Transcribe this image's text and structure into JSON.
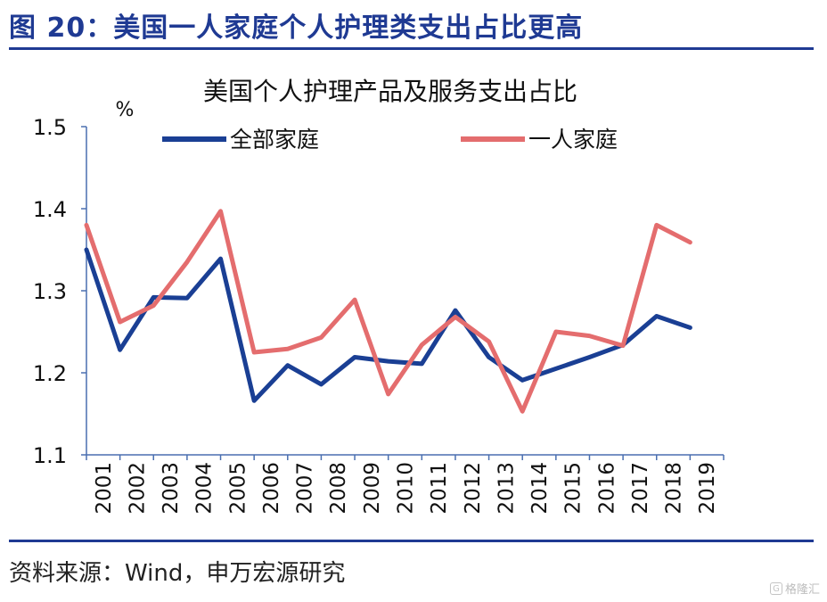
{
  "figure": {
    "title": "图 20：美国一人家庭个人护理类支出占比更高",
    "source": "资料来源：Wind，申万宏源研究",
    "watermark": "格隆汇"
  },
  "chart_data": {
    "type": "line",
    "title": "美国个人护理产品及服务支出占比",
    "ylabel": "%",
    "xlabel": "",
    "ylim": [
      1.1,
      1.5
    ],
    "yticks": [
      "1.1",
      "1.2",
      "1.3",
      "1.4",
      "1.5"
    ],
    "grid": false,
    "legend_position": "top",
    "categories": [
      "2001",
      "2002",
      "2003",
      "2004",
      "2005",
      "2006",
      "2007",
      "2008",
      "2009",
      "2010",
      "2011",
      "2012",
      "2013",
      "2014",
      "2015",
      "2016",
      "2017",
      "2018",
      "2019"
    ],
    "series": [
      {
        "name": "全部家庭",
        "color": "#1a3f94",
        "values": [
          1.35,
          1.228,
          1.292,
          1.291,
          1.339,
          1.166,
          1.209,
          1.186,
          1.219,
          1.214,
          1.211,
          1.276,
          1.219,
          1.191,
          1.205,
          1.219,
          1.234,
          1.269,
          1.255
        ]
      },
      {
        "name": "一人家庭",
        "color": "#e46d6e",
        "values": [
          1.38,
          1.262,
          1.282,
          1.335,
          1.397,
          1.225,
          1.229,
          1.243,
          1.289,
          1.174,
          1.234,
          1.268,
          1.238,
          1.153,
          1.25,
          1.245,
          1.233,
          1.38,
          1.359
        ]
      }
    ]
  }
}
